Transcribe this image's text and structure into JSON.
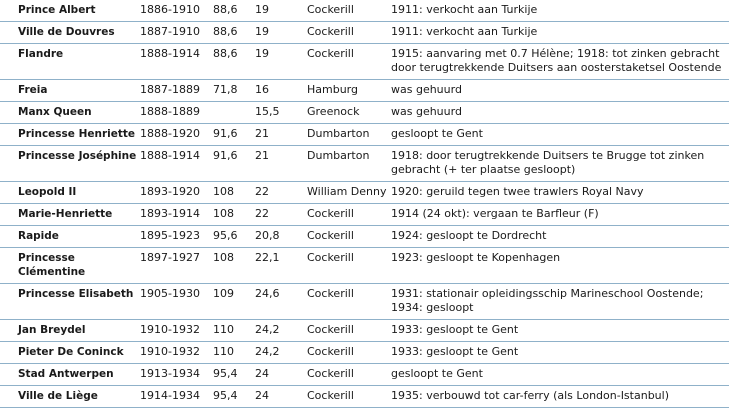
{
  "rows": [
    {
      "name": "Prince Albert",
      "years": "1886-1910",
      "tonnage": "88,6",
      "speed": "19",
      "builder": "Cockerill",
      "note": "1911: verkocht aan Turkije"
    },
    {
      "name": "Ville de Douvres",
      "years": "1887-1910",
      "tonnage": "88,6",
      "speed": "19",
      "builder": "Cockerill",
      "note": "1911: verkocht aan Turkije"
    },
    {
      "name": "Flandre",
      "years": "1888-1914",
      "tonnage": "88,6",
      "speed": "19",
      "builder": "Cockerill",
      "note": "1915: aanvaring met 0.7 Hélène; 1918: tot zinken gebracht door terugtrekkende Duitsers aan oosterstaketsel Oostende"
    },
    {
      "name": "Freia",
      "years": "1887-1889",
      "tonnage": "71,8",
      "speed": "16",
      "builder": "Hamburg",
      "note": "was gehuurd"
    },
    {
      "name": "Manx Queen",
      "years": "1888-1889",
      "tonnage": "",
      "speed": "15,5",
      "builder": "Greenock",
      "note": "was gehuurd"
    },
    {
      "name": "Princesse Henriette",
      "years": "1888-1920",
      "tonnage": "91,6",
      "speed": "21",
      "builder": "Dumbarton",
      "note": "gesloopt te Gent"
    },
    {
      "name": "Princesse Joséphine",
      "years": "1888-1914",
      "tonnage": "91,6",
      "speed": "21",
      "builder": "Dumbarton",
      "note": "1918: door terugtrekkende Duitsers te Brugge tot zinken gebracht (+ ter plaatse gesloopt)"
    },
    {
      "name": "Leopold II",
      "years": "1893-1920",
      "tonnage": "108",
      "speed": "22",
      "builder": "William Denny",
      "note": "1920: geruild tegen twee trawlers Royal Navy"
    },
    {
      "name": "Marie-Henriette",
      "years": "1893-1914",
      "tonnage": "108",
      "speed": "22",
      "builder": "Cockerill",
      "note": "1914 (24 okt): vergaan te Barfleur (F)"
    },
    {
      "name": "Rapide",
      "years": "1895-1923",
      "tonnage": "95,6",
      "speed": "20,8",
      "builder": "Cockerill",
      "note": "1924: gesloopt te Dordrecht"
    },
    {
      "name": "Princesse Clémentine",
      "years": "1897-1927",
      "tonnage": "108",
      "speed": "22,1",
      "builder": "Cockerill",
      "note": "1923: gesloopt te Kopenhagen"
    },
    {
      "name": "Princesse Elisabeth",
      "years": "1905-1930",
      "tonnage": "109",
      "speed": "24,6",
      "builder": "Cockerill",
      "note": "1931: stationair opleidingsschip Marineschool Oostende; 1934: gesloopt"
    },
    {
      "name": "Jan Breydel",
      "years": "1910-1932",
      "tonnage": "110",
      "speed": "24,2",
      "builder": "Cockerill",
      "note": "1933: gesloopt te Gent"
    },
    {
      "name": "Pieter De Coninck",
      "years": "1910-1932",
      "tonnage": "110",
      "speed": "24,2",
      "builder": "Cockerill",
      "note": "1933: gesloopt te Gent"
    },
    {
      "name": "Stad Antwerpen",
      "years": "1913-1934",
      "tonnage": "95,4",
      "speed": "24",
      "builder": "Cockerill",
      "note": "gesloopt te Gent"
    },
    {
      "name": "Ville de Liège",
      "years": "1914-1934",
      "tonnage": "95,4",
      "speed": "24",
      "builder": "Cockerill",
      "note": "1935: verbouwd tot car-ferry (als London-Istanbul)"
    }
  ]
}
